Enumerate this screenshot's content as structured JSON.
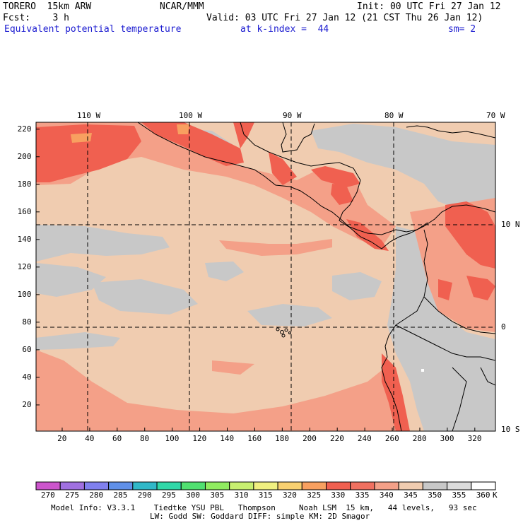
{
  "header": {
    "model": "TORERO  15km ARW",
    "org": "NCAR/MMM",
    "init": "Init: 00 UTC Fri 27 Jan 12",
    "fcst": "Fcst:    3 h",
    "valid": "Valid: 03 UTC Fri 27 Jan 12 (21 CST Thu 26 Jan 12)",
    "field": "Equivalent potential temperature",
    "level": "at k-index =  44",
    "smooth": "sm= 2"
  },
  "map": {
    "lon_labels": [
      "110 W",
      "100 W",
      "90 W",
      "80 W",
      "70 W"
    ],
    "lat_labels": [
      "10 N",
      "0",
      "10 S"
    ],
    "x_ticks": [
      "20",
      "40",
      "60",
      "80",
      "100",
      "120",
      "140",
      "160",
      "180",
      "200",
      "220",
      "240",
      "260",
      "280",
      "300",
      "320"
    ],
    "y_ticks": [
      "220",
      "200",
      "180",
      "160",
      "140",
      "120",
      "100",
      "80",
      "60",
      "40",
      "20"
    ],
    "grid_x_range": [
      1,
      335
    ],
    "grid_y_range": [
      1,
      225
    ]
  },
  "colorbar": {
    "unit": "K",
    "labels": [
      "270",
      "275",
      "280",
      "285",
      "290",
      "295",
      "300",
      "305",
      "310",
      "315",
      "320",
      "325",
      "330",
      "335",
      "340",
      "345",
      "350",
      "355",
      "360"
    ],
    "colors": [
      "#cc55cc",
      "#a070e0",
      "#8080ee",
      "#6090e8",
      "#30b8c8",
      "#30d8a8",
      "#50e070",
      "#90ec60",
      "#c8f070",
      "#f0f080",
      "#f8d070",
      "#f8a060",
      "#f06050",
      "#f07060",
      "#f4a088",
      "#f0ccb0",
      "#c8c8c8",
      "#dcdcdc",
      "#ffffff"
    ]
  },
  "footer": {
    "line1": "Model Info: V3.3.1    Tiedtke YSU PBL   Thompson     Noah LSM  15 km,   44 levels,   93 sec",
    "line2": "LW: Godd SW: Goddard DIFF: simple KM: 2D Smagor"
  }
}
